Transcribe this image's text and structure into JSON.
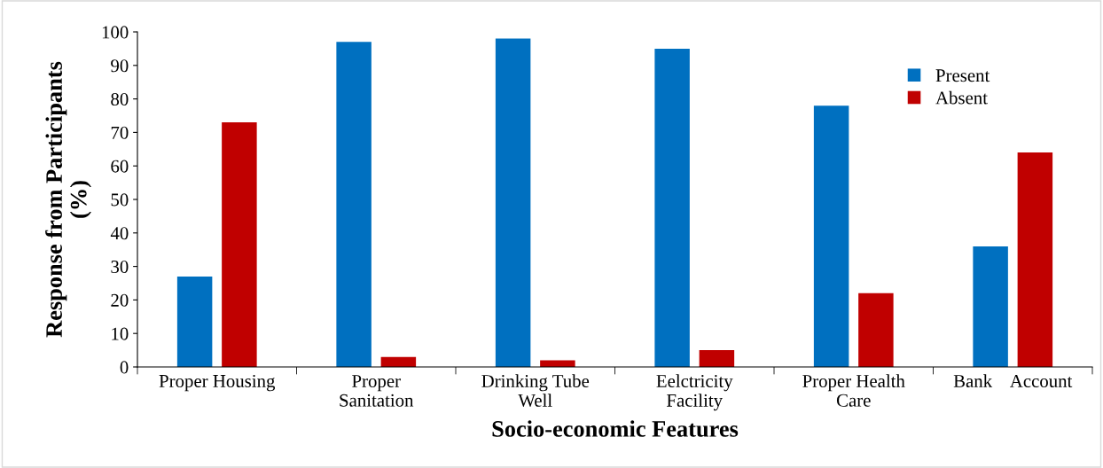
{
  "chart_data": {
    "type": "bar",
    "xlabel": "Socio-economic Features",
    "ylabel": "Response from Participants\n(%)",
    "categories": [
      "Proper Housing",
      "Proper\nSanitation",
      "Drinking Tube\nWell",
      "Eelctricity\nFacility",
      "Proper Health\nCare",
      "Bank    Account"
    ],
    "series": [
      {
        "name": "Present",
        "color": "#0070c0",
        "values": [
          27,
          97,
          98,
          95,
          78,
          36
        ]
      },
      {
        "name": "Absent",
        "color": "#c00000",
        "values": [
          73,
          3,
          2,
          5,
          22,
          64
        ]
      }
    ],
    "ylim": [
      0,
      100
    ],
    "yticks": [
      0,
      10,
      20,
      30,
      40,
      50,
      60,
      70,
      80,
      90,
      100
    ],
    "grid": false,
    "legend": "top right"
  }
}
